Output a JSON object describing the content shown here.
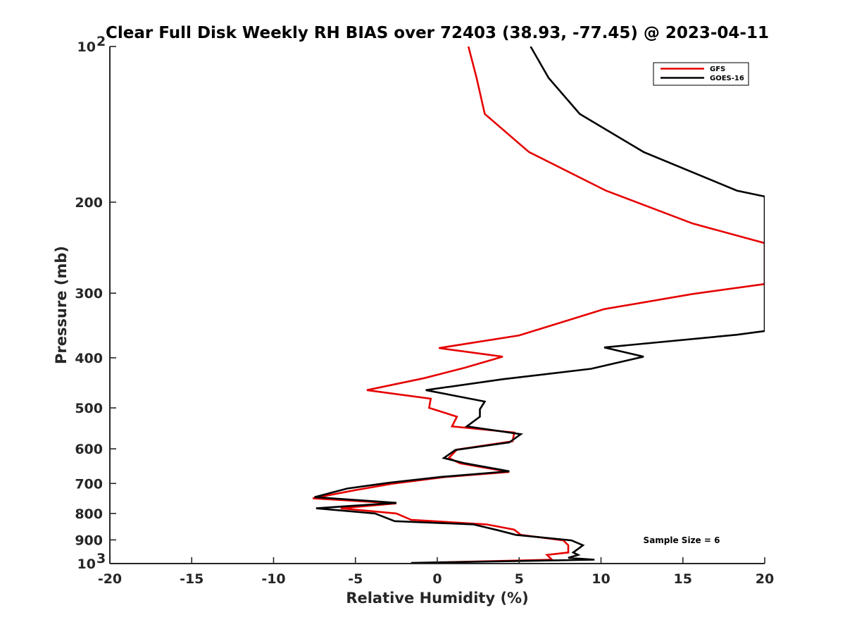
{
  "chart_data": {
    "type": "line",
    "title": "Clear Full Disk Weekly RH BIAS over 72403 (38.93, -77.45) @ 2023-04-11",
    "xlabel": "Relative Humidity (%)",
    "ylabel": "Pressure (mb)",
    "xlim": [
      -20,
      20
    ],
    "ylim": [
      100,
      1000
    ],
    "y_scale": "log",
    "y_reversed": true,
    "x_ticks": [
      "-20",
      "-15",
      "-10",
      "-5",
      "0",
      "5",
      "10",
      "15",
      "20"
    ],
    "y_ticks": [
      {
        "value": 100,
        "label": "10",
        "sup": "2"
      },
      {
        "value": 200,
        "label": "200",
        "sup": ""
      },
      {
        "value": 300,
        "label": "300",
        "sup": ""
      },
      {
        "value": 400,
        "label": "400",
        "sup": ""
      },
      {
        "value": 500,
        "label": "500",
        "sup": ""
      },
      {
        "value": 600,
        "label": "600",
        "sup": ""
      },
      {
        "value": 700,
        "label": "700",
        "sup": ""
      },
      {
        "value": 800,
        "label": "800",
        "sup": ""
      },
      {
        "value": 900,
        "label": "900",
        "sup": ""
      },
      {
        "value": 1000,
        "label": "10",
        "sup": "3"
      }
    ],
    "grid": false,
    "legend_position": "top-right",
    "series": [
      {
        "name": "GFS",
        "color": "#e60000",
        "points": [
          [
            1.9,
            100
          ],
          [
            2.4,
            115
          ],
          [
            2.9,
            135
          ],
          [
            5.6,
            160
          ],
          [
            10.3,
            190
          ],
          [
            15.6,
            220
          ],
          [
            20,
            240
          ],
          [
            20,
            288
          ],
          [
            15.6,
            301
          ],
          [
            10.2,
            322
          ],
          [
            5.0,
            362
          ],
          [
            0.1,
            383
          ],
          [
            4.0,
            398
          ],
          [
            1.7,
            418
          ],
          [
            -0.8,
            438
          ],
          [
            -4.3,
            462
          ],
          [
            -0.4,
            480
          ],
          [
            -0.5,
            500
          ],
          [
            1.2,
            520
          ],
          [
            0.9,
            543
          ],
          [
            4.7,
            558
          ],
          [
            4.6,
            580
          ],
          [
            1.2,
            602
          ],
          [
            0.7,
            625
          ],
          [
            1.4,
            640
          ],
          [
            4.4,
            665
          ],
          [
            0.5,
            680
          ],
          [
            -2.8,
            701
          ],
          [
            -5.0,
            721
          ],
          [
            -7.6,
            748
          ],
          [
            -2.5,
            765
          ],
          [
            -5.9,
            782
          ],
          [
            -2.5,
            800
          ],
          [
            -1.6,
            823
          ],
          [
            3.0,
            840
          ],
          [
            4.7,
            860
          ],
          [
            5.1,
            880
          ],
          [
            7.7,
            902
          ],
          [
            8.0,
            922
          ],
          [
            8.0,
            952
          ],
          [
            6.7,
            962
          ],
          [
            7.0,
            983
          ],
          [
            0.0,
            995
          ]
        ]
      },
      {
        "name": "GOES-16",
        "color": "#000000",
        "points": [
          [
            5.7,
            100
          ],
          [
            6.8,
            115
          ],
          [
            8.7,
            135
          ],
          [
            12.6,
            160
          ],
          [
            18.3,
            190
          ],
          [
            20,
            195
          ],
          [
            20,
            355
          ],
          [
            18.3,
            361
          ],
          [
            10.2,
            382
          ],
          [
            12.6,
            398
          ],
          [
            9.4,
            420
          ],
          [
            4.0,
            440
          ],
          [
            -0.7,
            462
          ],
          [
            2.9,
            486
          ],
          [
            2.6,
            503
          ],
          [
            2.6,
            520
          ],
          [
            1.8,
            543
          ],
          [
            5.1,
            562
          ],
          [
            4.4,
            583
          ],
          [
            1.1,
            603
          ],
          [
            0.4,
            625
          ],
          [
            1.7,
            640
          ],
          [
            4.4,
            663
          ],
          [
            0.2,
            680
          ],
          [
            -3.0,
            698
          ],
          [
            -5.5,
            716
          ],
          [
            -7.5,
            744
          ],
          [
            -2.5,
            763
          ],
          [
            -7.4,
            782
          ],
          [
            -3.8,
            800
          ],
          [
            -2.6,
            828
          ],
          [
            2.2,
            840
          ],
          [
            3.7,
            862
          ],
          [
            4.8,
            880
          ],
          [
            8.2,
            902
          ],
          [
            8.9,
            922
          ],
          [
            8.3,
            952
          ],
          [
            8.6,
            962
          ],
          [
            8.0,
            975
          ],
          [
            9.6,
            983
          ],
          [
            -1.6,
            997
          ]
        ]
      }
    ],
    "annotation": "Sample Size = 6"
  }
}
